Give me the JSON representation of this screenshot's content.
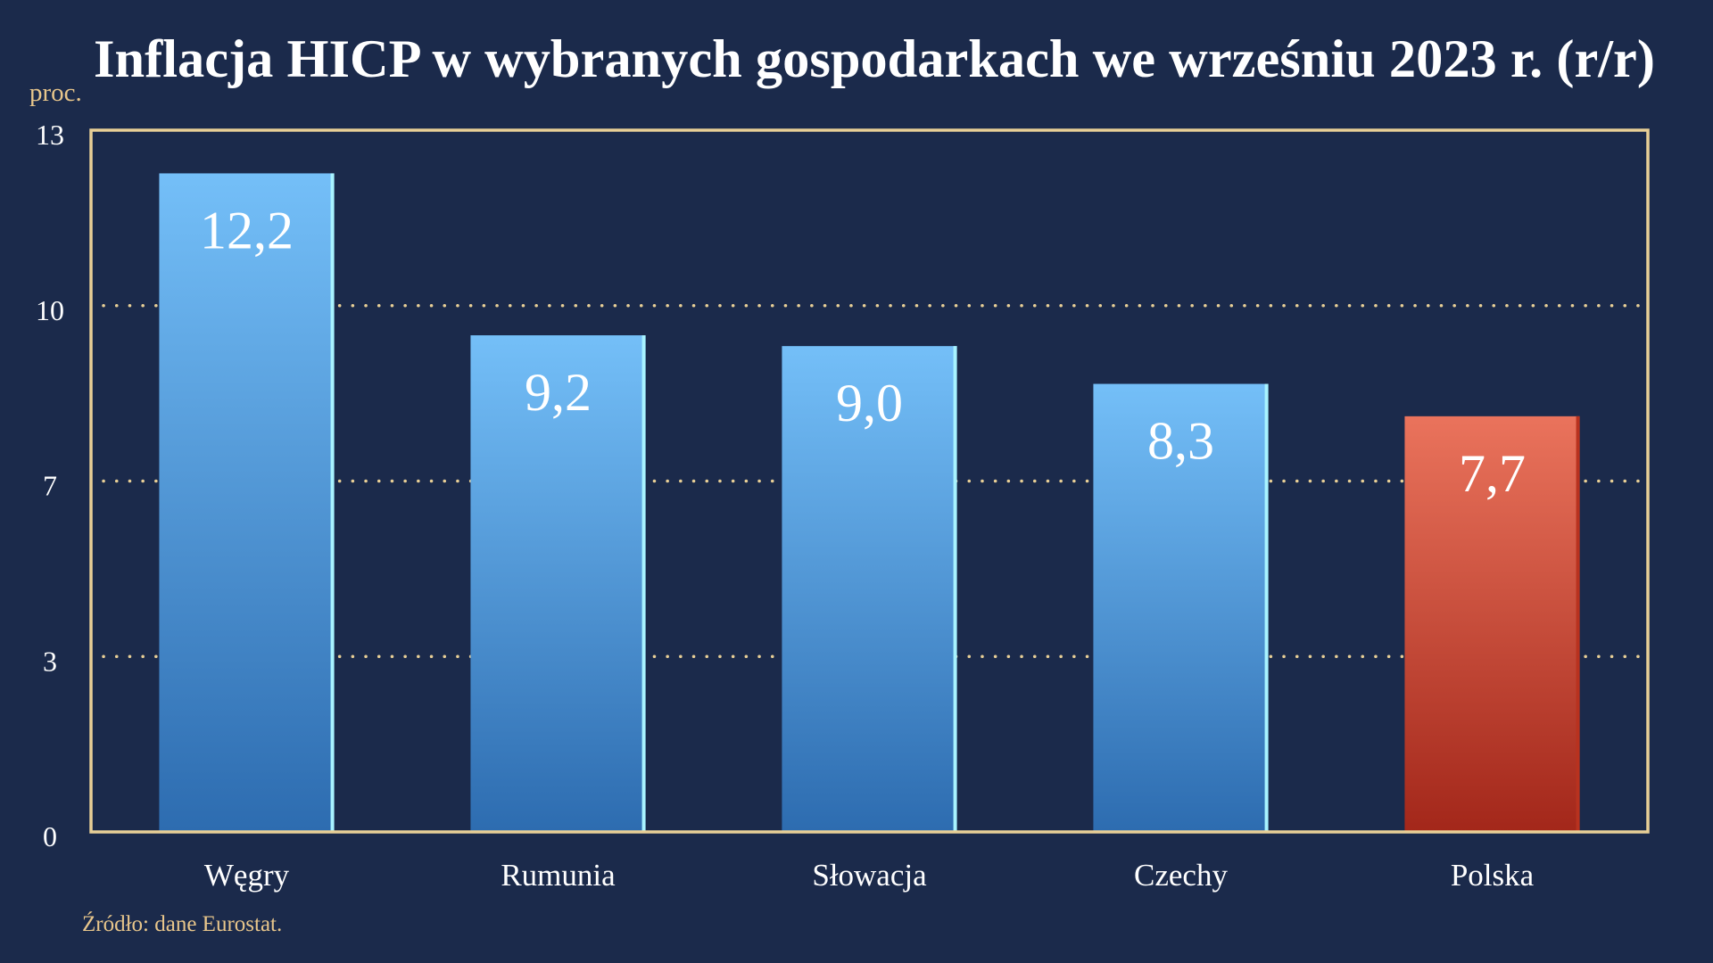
{
  "colors": {
    "background": "#1b2a4b",
    "accent": "#e8cf96",
    "label_text": "#e8c68b",
    "text": "#ffffff",
    "bar_gradient": [
      "#74bff8",
      "#2d6cb0"
    ],
    "bar_edge": "#a8f3ff",
    "highlight_gradient": [
      "#ea735c",
      "#a3271a"
    ],
    "highlight_edge": "#b8321f"
  },
  "chart_data": {
    "type": "bar",
    "title": "Inflacja HICP w wybranych gospodarkach we wrześniu 2023 r. (r/r)",
    "xlabel": "",
    "ylabel": "proc.",
    "categories": [
      "Węgry",
      "Rumunia",
      "Słowacja",
      "Czechy",
      "Polska"
    ],
    "values": [
      12.2,
      9.2,
      9.0,
      8.3,
      7.7
    ],
    "value_labels": [
      "12,2",
      "9,2",
      "9,0",
      "8,3",
      "7,7"
    ],
    "highlight_category": "Polska",
    "ylim": [
      0,
      13
    ],
    "yticks": [
      0,
      3.25,
      6.5,
      9.75,
      13
    ],
    "ytick_labels": [
      "0",
      "3",
      "7",
      "10",
      "13"
    ],
    "grid": true,
    "source": "Źródło: dane Eurostat."
  }
}
